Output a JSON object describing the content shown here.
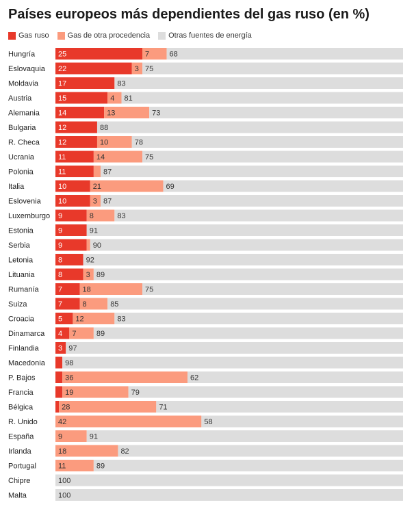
{
  "chart_data": {
    "type": "bar",
    "stacked": true,
    "orientation": "horizontal",
    "title": "Países europeos más dependientes del gas ruso (en %)",
    "xlim": [
      0,
      100
    ],
    "legend_position": "top-left",
    "categories": [
      "Hungría",
      "Eslovaquia",
      "Moldavia",
      "Austria",
      "Alemania",
      "Bulgaria",
      "R. Checa",
      "Ucrania",
      "Polonia",
      "Italia",
      "Eslovenia",
      "Luxemburgo",
      "Estonia",
      "Serbia",
      "Letonia",
      "Lituania",
      "Rumanía",
      "Suiza",
      "Croacia",
      "Dinamarca",
      "Finlandia",
      "Macedonia",
      "P. Bajos",
      "Francia",
      "Bélgica",
      "R. Unido",
      "España",
      "Irlanda",
      "Portugal",
      "Chipre",
      "Malta"
    ],
    "series": [
      {
        "name": "Gas ruso",
        "color": "#e8392a",
        "values": [
          25,
          22,
          17,
          15,
          14,
          12,
          12,
          11,
          11,
          10,
          10,
          9,
          9,
          9,
          8,
          8,
          7,
          7,
          5,
          4,
          3,
          2,
          2,
          2,
          1,
          0,
          0,
          0,
          0,
          0,
          0
        ]
      },
      {
        "name": "Gas de otra procedencia",
        "color": "#fb9b7e",
        "values": [
          7,
          3,
          0,
          4,
          13,
          0,
          10,
          14,
          2,
          21,
          3,
          8,
          0,
          1,
          0,
          3,
          18,
          8,
          12,
          7,
          0,
          0,
          36,
          19,
          28,
          42,
          9,
          18,
          11,
          0,
          0
        ]
      },
      {
        "name": "Otras fuentes de energía",
        "color": "#dddddd",
        "values": [
          68,
          75,
          83,
          81,
          73,
          88,
          78,
          75,
          87,
          69,
          87,
          83,
          91,
          90,
          92,
          89,
          75,
          85,
          83,
          89,
          97,
          98,
          62,
          79,
          71,
          58,
          91,
          82,
          89,
          100,
          100
        ]
      }
    ],
    "labels": {
      "Gas ruso": [
        "25",
        "22",
        "17",
        "15",
        "14",
        "12",
        "12",
        "11",
        "11",
        "10",
        "10",
        "9",
        "9",
        "9",
        "8",
        "8",
        "7",
        "7",
        "5",
        "4",
        "3",
        "",
        "",
        "",
        "",
        "",
        "",
        "",
        "",
        "",
        ""
      ],
      "Gas de otra procedencia": [
        "7",
        "3",
        "",
        "4",
        "13",
        "",
        "10",
        "14",
        "",
        "21",
        "3",
        "8",
        "",
        "",
        "",
        "3",
        "18",
        "8",
        "12",
        "7",
        "",
        "",
        "36",
        "19",
        "28",
        "42",
        "9",
        "18",
        "11",
        "",
        ""
      ],
      "Otras fuentes de energía": [
        "68",
        "75",
        "83",
        "81",
        "73",
        "88",
        "78",
        "75",
        "87",
        "69",
        "87",
        "83",
        "91",
        "90",
        "92",
        "89",
        "75",
        "85",
        "83",
        "89",
        "97",
        "98",
        "62",
        "79",
        "71",
        "58",
        "91",
        "82",
        "89",
        "100",
        "100"
      ]
    }
  }
}
